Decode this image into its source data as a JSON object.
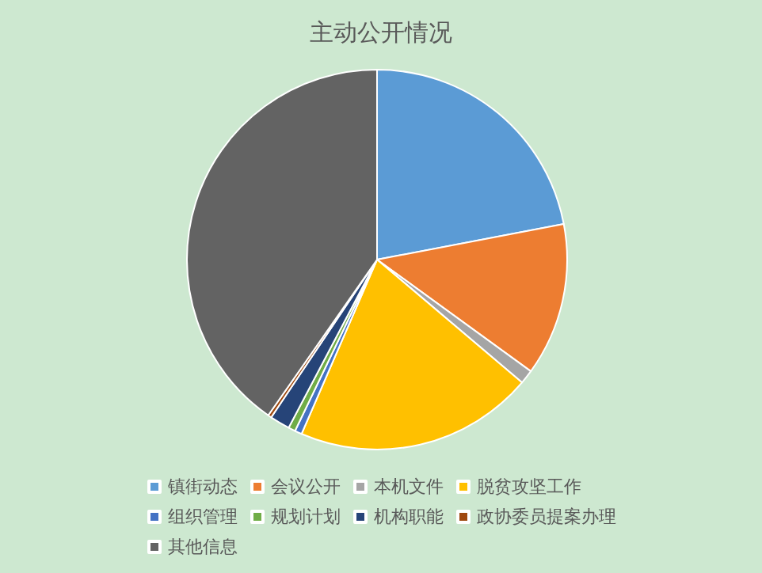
{
  "chart_data": {
    "type": "pie",
    "title": "主动公开情况",
    "categories": [
      "镇街动态",
      "会议公开",
      "本机文件",
      "脱贫攻坚工作",
      "组织管理",
      "规划计划",
      "机构职能",
      "政协委员提案办理",
      "其他信息"
    ],
    "values": [
      22,
      13,
      1.2,
      20.3,
      0.6,
      0.6,
      1.7,
      0.3,
      40.3
    ],
    "colors": [
      "#5b9bd5",
      "#ed7d31",
      "#a5a5a5",
      "#ffc000",
      "#4472c4",
      "#70ad47",
      "#264478",
      "#9e480e",
      "#636363"
    ],
    "legend": "bottom"
  }
}
